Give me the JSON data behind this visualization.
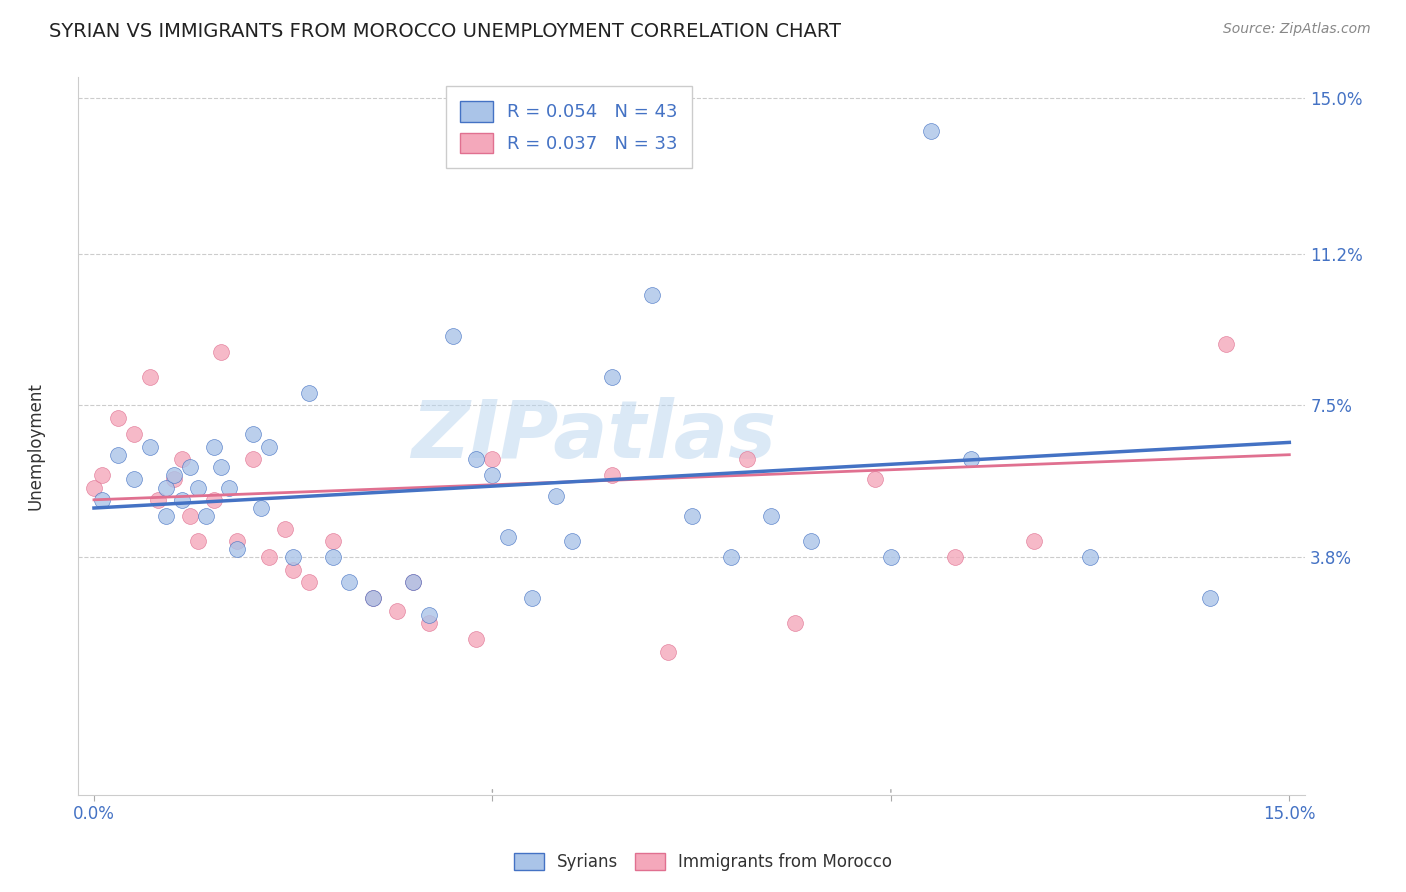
{
  "title": "SYRIAN VS IMMIGRANTS FROM MOROCCO UNEMPLOYMENT CORRELATION CHART",
  "source": "Source: ZipAtlas.com",
  "ylabel": "Unemployment",
  "xlim": [
    -0.002,
    0.152
  ],
  "ylim": [
    -0.02,
    0.155
  ],
  "background_color": "#ffffff",
  "grid_color": "#cccccc",
  "syrians_color": "#aac4e8",
  "morocco_color": "#f4a8bb",
  "line_syrian_color": "#4472c4",
  "line_morocco_color": "#e07090",
  "R_syrian": 0.054,
  "N_syrian": 43,
  "R_morocco": 0.037,
  "N_morocco": 33,
  "legend_label_syrian": "Syrians",
  "legend_label_morocco": "Immigrants from Morocco",
  "syrians_x": [
    0.001,
    0.003,
    0.005,
    0.007,
    0.009,
    0.009,
    0.01,
    0.011,
    0.012,
    0.013,
    0.014,
    0.015,
    0.016,
    0.017,
    0.018,
    0.02,
    0.021,
    0.022,
    0.025,
    0.027,
    0.03,
    0.032,
    0.035,
    0.04,
    0.042,
    0.045,
    0.048,
    0.05,
    0.052,
    0.055,
    0.058,
    0.06,
    0.065,
    0.07,
    0.075,
    0.08,
    0.085,
    0.09,
    0.1,
    0.105,
    0.11,
    0.125,
    0.14
  ],
  "syrians_y": [
    0.052,
    0.063,
    0.057,
    0.065,
    0.055,
    0.048,
    0.058,
    0.052,
    0.06,
    0.055,
    0.048,
    0.065,
    0.06,
    0.055,
    0.04,
    0.068,
    0.05,
    0.065,
    0.038,
    0.078,
    0.038,
    0.032,
    0.028,
    0.032,
    0.024,
    0.092,
    0.062,
    0.058,
    0.043,
    0.028,
    0.053,
    0.042,
    0.082,
    0.102,
    0.048,
    0.038,
    0.048,
    0.042,
    0.038,
    0.142,
    0.062,
    0.038,
    0.028
  ],
  "morocco_x": [
    0.0,
    0.001,
    0.003,
    0.005,
    0.007,
    0.008,
    0.01,
    0.011,
    0.012,
    0.013,
    0.015,
    0.016,
    0.018,
    0.02,
    0.022,
    0.024,
    0.025,
    0.027,
    0.03,
    0.035,
    0.038,
    0.04,
    0.042,
    0.048,
    0.05,
    0.065,
    0.072,
    0.082,
    0.088,
    0.098,
    0.108,
    0.118,
    0.142
  ],
  "morocco_y": [
    0.055,
    0.058,
    0.072,
    0.068,
    0.082,
    0.052,
    0.057,
    0.062,
    0.048,
    0.042,
    0.052,
    0.088,
    0.042,
    0.062,
    0.038,
    0.045,
    0.035,
    0.032,
    0.042,
    0.028,
    0.025,
    0.032,
    0.022,
    0.018,
    0.062,
    0.058,
    0.015,
    0.062,
    0.022,
    0.057,
    0.038,
    0.042,
    0.09
  ],
  "watermark": "ZIPatlas",
  "title_fontsize": 14,
  "axis_label_fontsize": 12,
  "tick_fontsize": 12,
  "legend_fontsize": 13,
  "marker_size": 130,
  "ytick_positions": [
    0.15,
    0.112,
    0.075,
    0.038
  ],
  "ytick_labels": [
    "15.0%",
    "11.2%",
    "7.5%",
    "3.8%"
  ],
  "xtick_positions": [
    0.0,
    0.05,
    0.1,
    0.15
  ],
  "xtick_labels": [
    "0.0%",
    "",
    "",
    "15.0%"
  ]
}
